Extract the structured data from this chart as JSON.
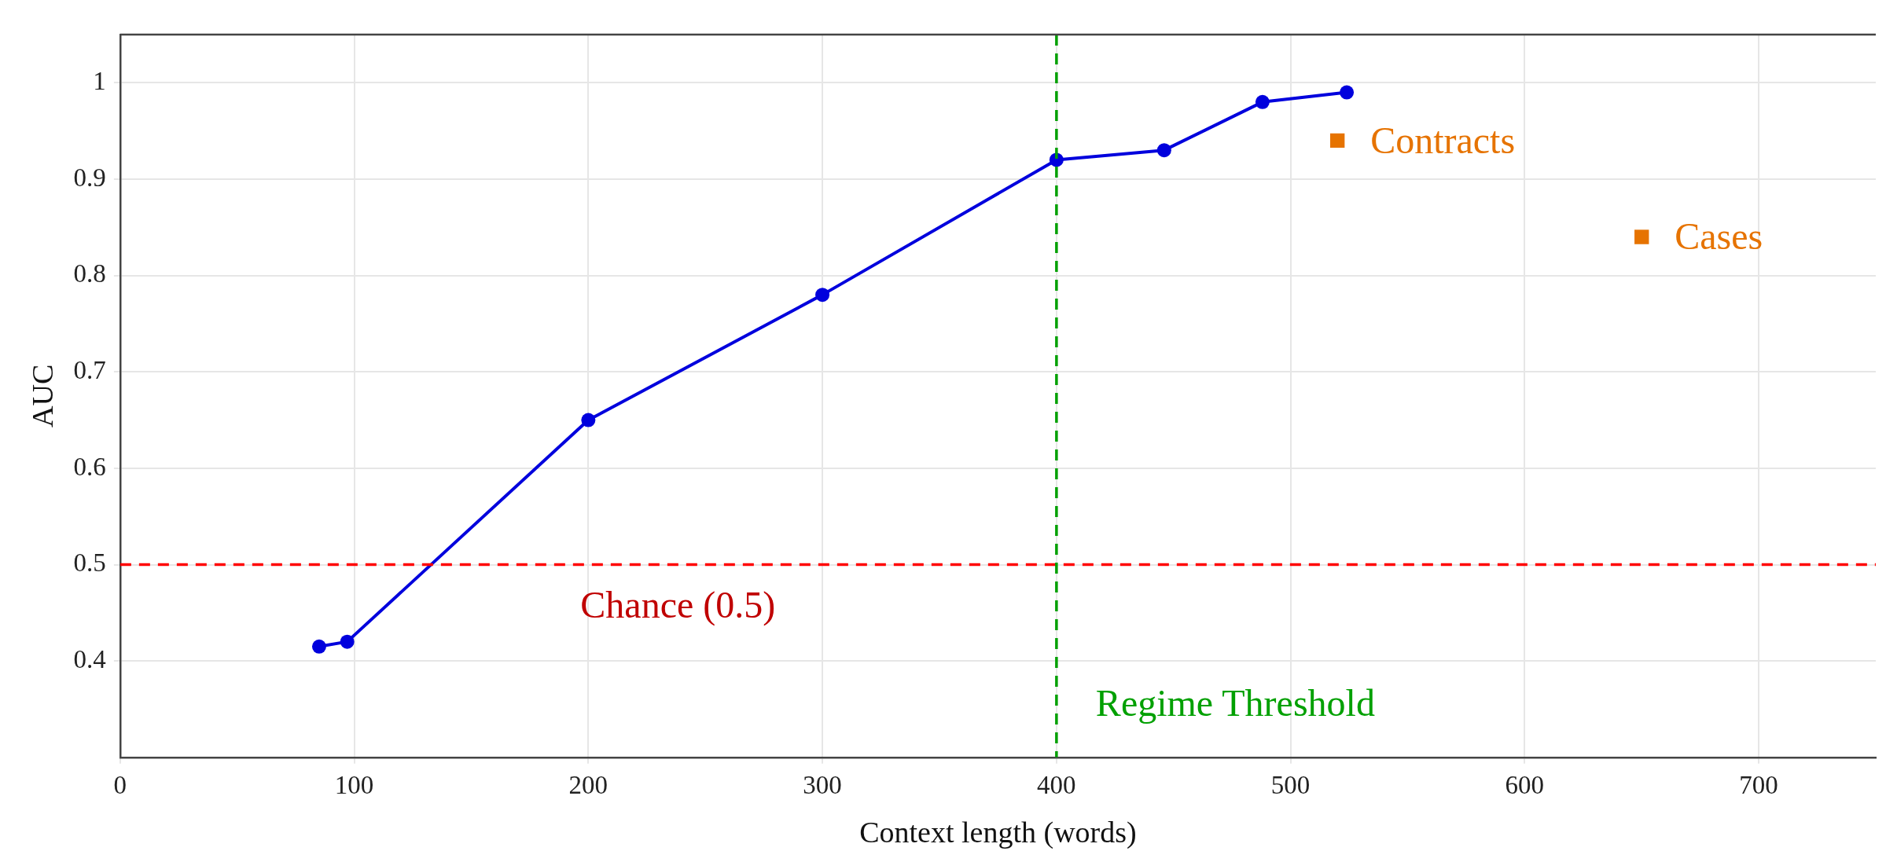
{
  "chart_data": {
    "type": "line",
    "xlabel": "Context length (words)",
    "ylabel": "AUC",
    "xlim": [
      0,
      750
    ],
    "ylim": [
      0.3,
      1.05
    ],
    "xticks": [
      0,
      100,
      200,
      300,
      400,
      500,
      600,
      700
    ],
    "yticks": [
      0.4,
      0.5,
      0.6,
      0.7,
      0.8,
      0.9,
      1
    ],
    "grid": true,
    "legend": false,
    "marker": "circle",
    "line_style": "solid",
    "series": [
      {
        "color": "#0000dd",
        "x": [
          85,
          97,
          200,
          300,
          400,
          446,
          488,
          524
        ],
        "values": [
          0.415,
          0.42,
          0.65,
          0.78,
          0.92,
          0.93,
          0.98,
          0.99
        ]
      },
      {
        "type": "scatter",
        "name": "Contracts",
        "color": "#e67300",
        "marker": "square",
        "x": [
          520
        ],
        "values": [
          0.94
        ]
      },
      {
        "type": "scatter",
        "name": "Cases",
        "color": "#e67300",
        "marker": "square",
        "x": [
          650
        ],
        "values": [
          0.84
        ]
      }
    ],
    "ref_lines": [
      {
        "axis": "y",
        "value": 0.5,
        "label": "Chance (0.5)",
        "color": "#ff0000",
        "line_style": "dashed"
      },
      {
        "axis": "x",
        "value": 400,
        "label": "Regime Threshold",
        "color": "#00a000",
        "line_style": "dashed"
      }
    ]
  }
}
